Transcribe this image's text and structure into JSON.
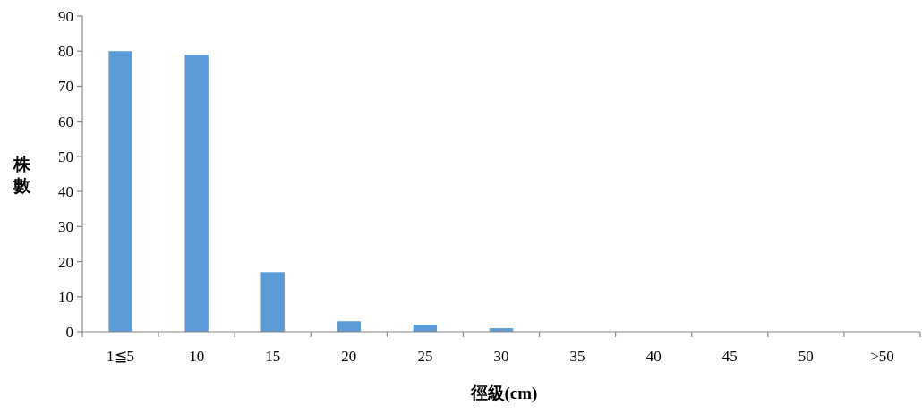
{
  "chart_data": {
    "type": "bar",
    "xlabel": "徑級(cm)",
    "ylabel": "株數",
    "categories": [
      "1≦5",
      "10",
      "15",
      "20",
      "25",
      "30",
      "35",
      "40",
      "45",
      "50",
      ">50"
    ],
    "values": [
      80,
      79,
      17,
      3,
      2,
      1,
      0,
      0,
      0,
      0,
      0
    ],
    "color": "#5b9bd5",
    "ylim": [
      0,
      90
    ],
    "yticks": [
      0,
      10,
      20,
      30,
      40,
      50,
      60,
      70,
      80,
      90
    ],
    "grid": false
  }
}
